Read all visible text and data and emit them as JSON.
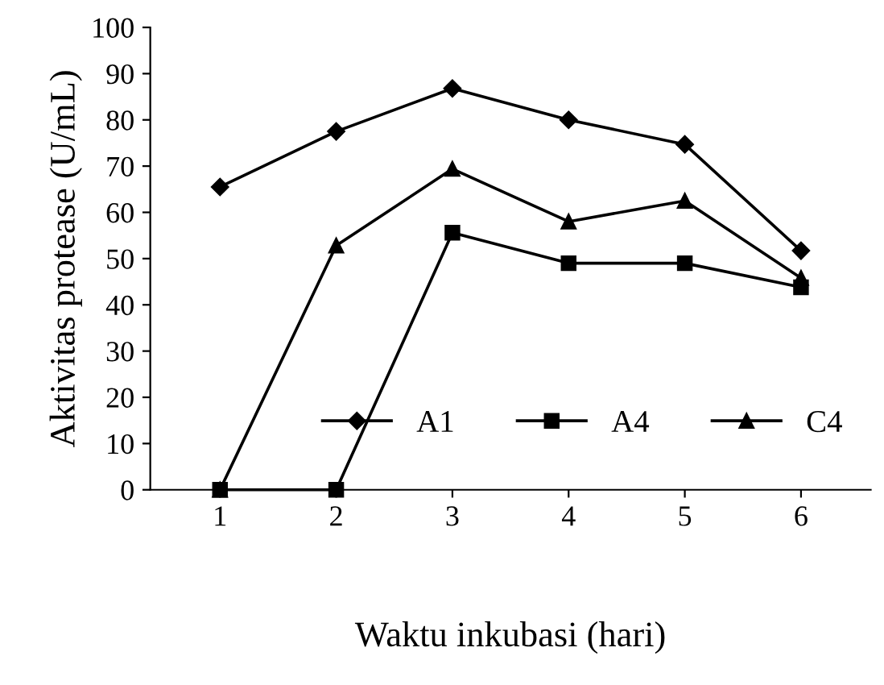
{
  "chart_data": {
    "type": "line",
    "xlabel": "Waktu inkubasi (hari)",
    "ylabel": "Aktivitas protease (U/mL)",
    "categories": [
      "1",
      "2",
      "3",
      "4",
      "5",
      "6"
    ],
    "series": [
      {
        "name": "A1",
        "color": "#000000",
        "marker": "diamond",
        "values": [
          65.5,
          77.5,
          86.8,
          80,
          74.7,
          51.7
        ]
      },
      {
        "name": "A4",
        "color": "#000000",
        "marker": "square",
        "values": [
          0,
          0,
          55.6,
          49,
          49,
          43.8
        ]
      },
      {
        "name": "C4",
        "color": "#000000",
        "marker": "triangle",
        "values": [
          0,
          52.8,
          69.4,
          58,
          62.5,
          45.8
        ]
      }
    ],
    "ylim": [
      0,
      100
    ],
    "yticks": [
      0,
      10,
      20,
      30,
      40,
      50,
      60,
      70,
      80,
      90,
      100
    ],
    "grid": false,
    "legend": "bottom right",
    "line_style": "solid"
  }
}
